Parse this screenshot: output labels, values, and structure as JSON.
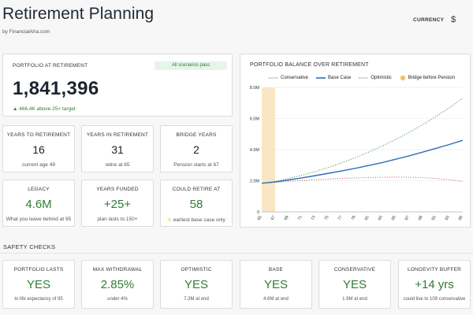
{
  "header": {
    "title": "Retirement Planning",
    "subtitle": "by FinancialAha.com",
    "currency_label": "CURRENCY",
    "currency_value": "$"
  },
  "portfolio": {
    "header": "PORTFOLIO AT RETIREMENT",
    "badge": "All scenarios pass",
    "value": "1,841,396",
    "above_target": "466.4K above 25× target",
    "up_arrow": "▲"
  },
  "stats": [
    {
      "header": "YEARS TO RETIREMENT",
      "value": "16",
      "sub": "current age 49"
    },
    {
      "header": "YEARS IN RETIREMENT",
      "value": "31",
      "sub": "retire at 65"
    },
    {
      "header": "BRIDGE YEARS",
      "value": "2",
      "sub": "Pension starts at 67"
    },
    {
      "header": "LEGACY",
      "value": "4.6M",
      "sub": "What you leave behind at 95"
    },
    {
      "header": "YEARS FUNDED",
      "value": "+25+",
      "sub": "plan lasts to 150+"
    },
    {
      "header": "COULD RETIRE AT",
      "value": "58",
      "sub": "earliest base case only",
      "warn_icon": "⚠"
    }
  ],
  "chart_panel": {
    "title": "PORTFOLIO BALANCE OVER RETIREMENT",
    "legend": [
      {
        "name": "Conservative",
        "color": "#c0504d",
        "style": "dotted"
      },
      {
        "name": "Base Case",
        "color": "#2f6eb5",
        "style": "solid"
      },
      {
        "name": "Optimistic",
        "color": "#3a8f4b",
        "style": "dotted"
      },
      {
        "name": "Bridge before Pension",
        "color": "#f3c26b",
        "style": "dot"
      }
    ]
  },
  "chart_data": {
    "type": "line",
    "x": [
      65,
      67,
      69,
      71,
      73,
      75,
      77,
      79,
      81,
      83,
      85,
      87,
      89,
      91,
      93,
      95
    ],
    "xlim": [
      65,
      95
    ],
    "ylim": [
      0,
      8000000
    ],
    "yticks": [
      0,
      2000000,
      4000000,
      6000000,
      8000000
    ],
    "ytick_labels": [
      "0",
      "2.0M",
      "4.0M",
      "6.0M",
      "8.0M"
    ],
    "xtick_labels": [
      "65",
      "67",
      "69",
      "71",
      "73",
      "75",
      "77",
      "79",
      "81",
      "83",
      "85",
      "87",
      "89",
      "91",
      "93",
      "95"
    ],
    "bridge_range": [
      65,
      67
    ],
    "series": [
      {
        "name": "Conservative",
        "values": [
          1840000,
          1900000,
          1960000,
          2010000,
          2060000,
          2110000,
          2150000,
          2180000,
          2210000,
          2230000,
          2240000,
          2230000,
          2200000,
          2140000,
          2060000,
          1950000
        ]
      },
      {
        "name": "Base Case",
        "values": [
          1840000,
          1920000,
          2050000,
          2180000,
          2330000,
          2480000,
          2640000,
          2800000,
          2980000,
          3170000,
          3380000,
          3600000,
          3840000,
          4080000,
          4330000,
          4600000
        ]
      },
      {
        "name": "Optimistic",
        "values": [
          1840000,
          1960000,
          2140000,
          2350000,
          2590000,
          2860000,
          3160000,
          3490000,
          3850000,
          4240000,
          4660000,
          5110000,
          5600000,
          6130000,
          6690000,
          7300000
        ]
      }
    ],
    "grid": "horizontal",
    "legend_position": "top"
  },
  "safety": {
    "title": "SAFETY CHECKS",
    "checks": [
      {
        "header": "PORTFOLIO LASTS",
        "value": "YES",
        "sub": "to life expectancy of 95"
      },
      {
        "header": "MAX WITHDRAWAL",
        "value": "2.85%",
        "sub": "under 4%"
      },
      {
        "header": "OPTIMISTIC",
        "value": "YES",
        "sub": "7.3M at end"
      },
      {
        "header": "BASE",
        "value": "YES",
        "sub": "4.6M at end"
      },
      {
        "header": "CONSERVATIVE",
        "value": "YES",
        "sub": "1.9M at end"
      },
      {
        "header": "LONGEVITY BUFFER",
        "value": "+14 yrs",
        "sub": "could live to 109 conservative"
      }
    ]
  }
}
